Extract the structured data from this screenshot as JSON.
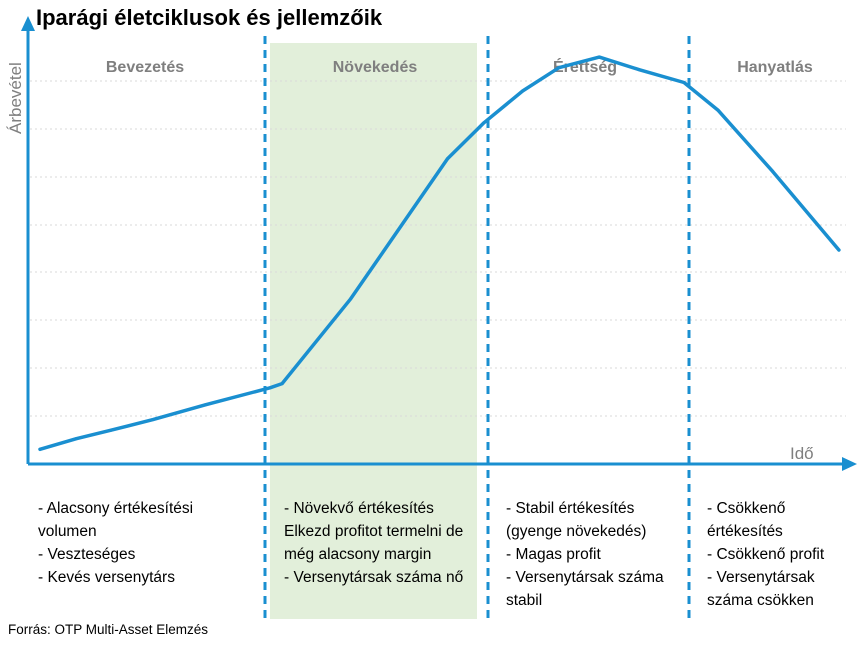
{
  "title": "Iparági életciklusok és jellemzőik",
  "source": "Forrás: OTP Multi-Asset Elemzés",
  "colors": {
    "line": "#1a8fd0",
    "axis": "#1a8fd0",
    "divider": "#1a8fd0",
    "highlight": "#e2efda",
    "grid": "#d9d9d9",
    "phase_label": "#7f7f7f"
  },
  "chart_data": {
    "type": "line",
    "title": "Iparági életciklusok és jellemzőik",
    "xlabel": "Idő",
    "ylabel": "Árbevétel",
    "ticks_shown": false,
    "grid": "horizontal dashed",
    "highlighted_phase": "Növekedés",
    "phases": [
      {
        "name": "Bevezetés",
        "characteristics": [
          "- Alacsony értékesítési volumen",
          "- Veszteséges",
          "- Kevés versenytárs"
        ]
      },
      {
        "name": "Növekedés",
        "characteristics": [
          "- Növekvő értékesítés",
          "Elkezd profitot termelni de még alacsony margin",
          "- Versenytársak száma nő"
        ]
      },
      {
        "name": "Érettség",
        "characteristics": [
          "- Stabil értékesítés (gyenge növekedés)",
          "- Magas profit",
          "- Versenytársak száma stabil"
        ]
      },
      {
        "name": "Hanyatlás",
        "characteristics": [
          "- Csökkenő értékesítés",
          "- Csökkenő profit",
          "- Versenytársak száma csökken"
        ]
      }
    ],
    "series": [
      {
        "x": [
          0.0,
          0.045,
          0.088,
          0.14,
          0.205,
          0.285,
          0.3,
          0.385,
          0.505,
          0.55,
          0.598,
          0.643,
          0.693,
          0.743,
          0.798,
          0.84,
          0.908,
          0.99
        ],
        "y": [
          0.03,
          0.055,
          0.075,
          0.1,
          0.135,
          0.175,
          0.185,
          0.385,
          0.715,
          0.8,
          0.875,
          0.93,
          0.955,
          0.925,
          0.895,
          0.83,
          0.685,
          0.5
        ]
      }
    ]
  }
}
